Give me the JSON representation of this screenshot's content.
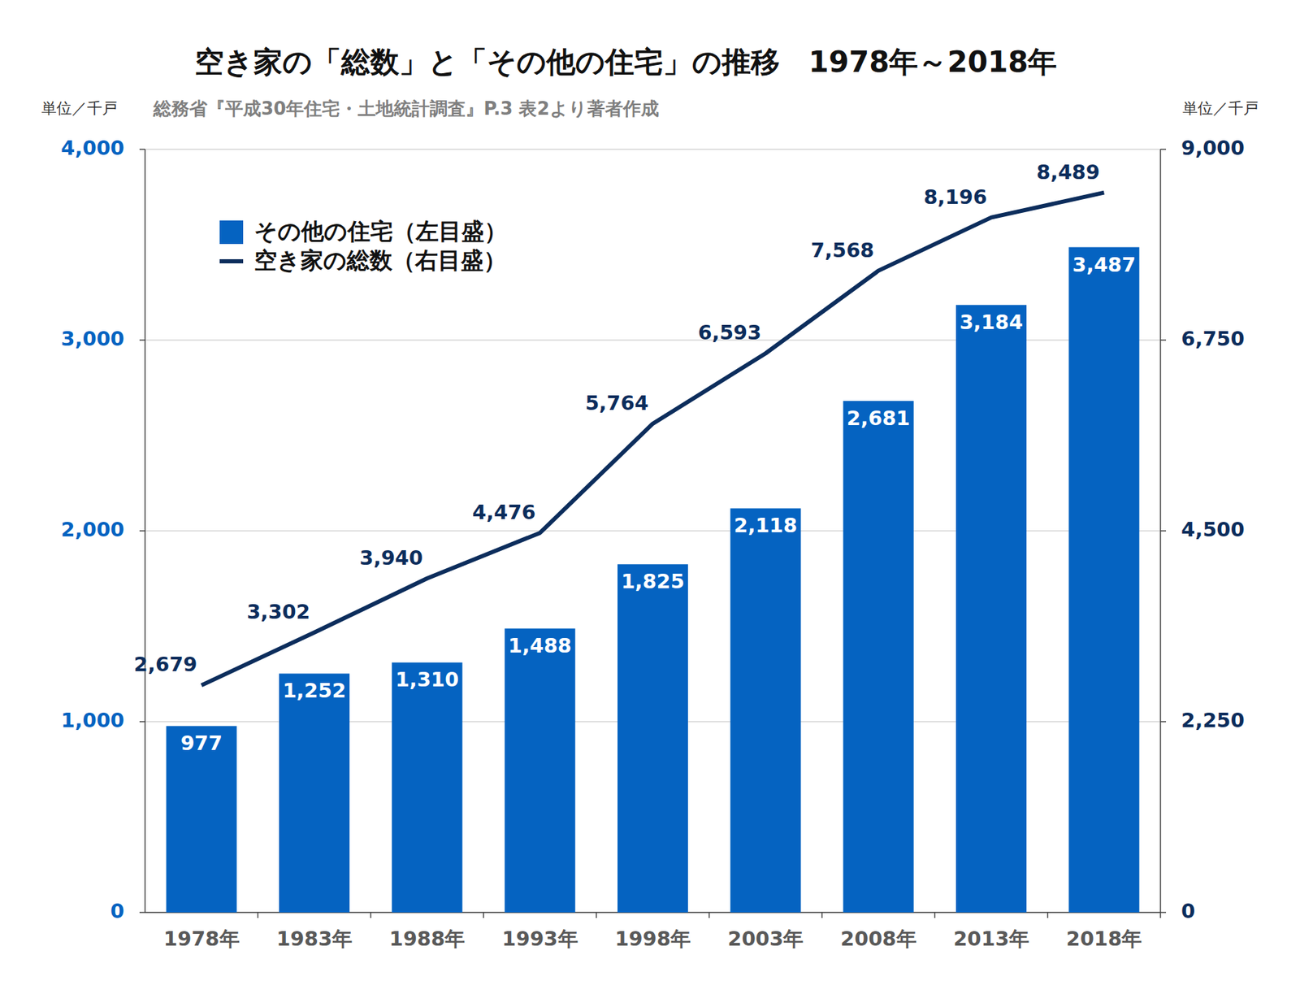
{
  "chart_data": {
    "type": "bar",
    "title": "空き家の「総数」と「その他の住宅」の推移　1978年～2018年",
    "subtitle": "総務省『平成30年住宅・土地統計調査』P.3 表2より著者作成",
    "y_label": "単位／千戸",
    "y2_label": "単位／千戸",
    "categories": [
      "1978年",
      "1983年",
      "1988年",
      "1993年",
      "1998年",
      "2003年",
      "2008年",
      "2013年",
      "2018年"
    ],
    "series": [
      {
        "name": "その他の住宅（左目盛）",
        "type": "bar",
        "color": "#0563c1",
        "values": [
          977,
          1252,
          1310,
          1488,
          1825,
          2118,
          2681,
          3184,
          3487
        ],
        "value_labels": [
          "977",
          "1,252",
          "1,310",
          "1,488",
          "1,825",
          "2,118",
          "2,681",
          "3,184",
          "3,487"
        ]
      },
      {
        "name": "空き家の総数（右目盛）",
        "type": "line",
        "axis": "y2",
        "color": "#0c2d5c",
        "values": [
          2679,
          3302,
          3940,
          4476,
          5764,
          6593,
          7568,
          8196,
          8489
        ],
        "value_labels": [
          "2,679",
          "3,302",
          "3,940",
          "4,476",
          "5,764",
          "6,593",
          "7,568",
          "8,196",
          "8,489"
        ]
      }
    ],
    "ylim": [
      0,
      4000
    ],
    "yticks": [
      0,
      {
        "value": 1000,
        "label": "1,000"
      },
      {
        "value": 2000,
        "label": "2,000"
      },
      {
        "value": 3000,
        "label": "3,000"
      },
      {
        "value": 4000,
        "label": "4,000"
      }
    ],
    "y2lim": [
      0,
      9000
    ],
    "y2ticks": [
      0,
      {
        "value": 2250,
        "label": "2,250"
      },
      {
        "value": 4500,
        "label": "4,500"
      },
      {
        "value": 6750,
        "label": "6,750"
      },
      {
        "value": 9000,
        "label": "9,000"
      }
    ],
    "grid": true,
    "legend": "top-left",
    "data_labels": true
  }
}
